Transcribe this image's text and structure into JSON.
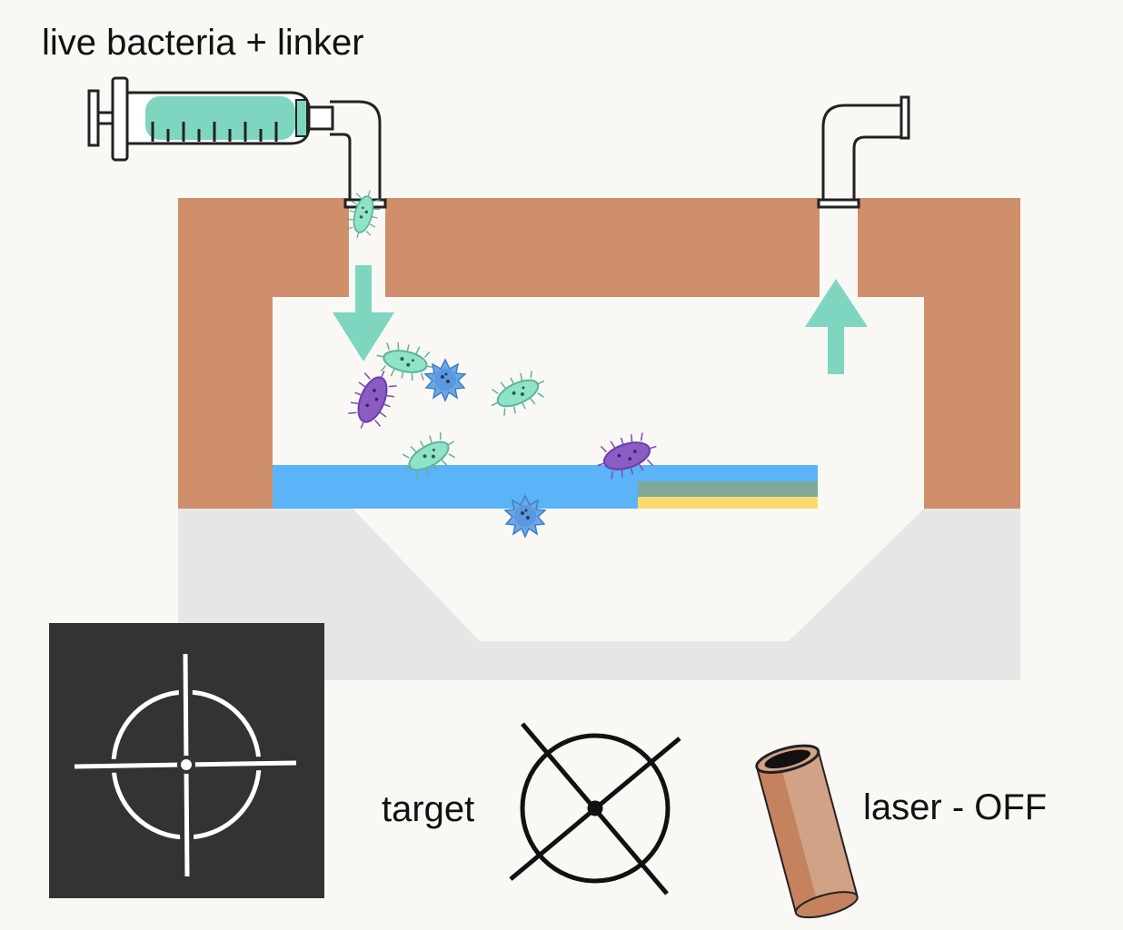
{
  "labels": {
    "inlet": "live bacteria + linker",
    "target": "target",
    "laser": "laser - OFF"
  },
  "colors": {
    "background": "#f9f8f4",
    "chamber_wall": "#cf8f6a",
    "base": "#e6e6e6",
    "fluid_arrow": "#7fd6c0",
    "syringe_fluid": "#7fd6c0",
    "substrate": "#5ab4f7",
    "layer_green": "#7ea898",
    "layer_yellow": "#fcd96e",
    "bacteria_green": "#8fe3c9",
    "bacteria_purple": "#8a5cc4",
    "bacteria_blue": "#6aa7e6",
    "crosshair_panel": "#333333",
    "laser_tube": "#d2a287"
  },
  "icons": {
    "inlet_syringe": "syringe-icon",
    "crosshair": "crosshair-icon",
    "target": "target-icon",
    "laser": "laser-tube-icon",
    "flow_in": "arrow-down-icon",
    "flow_out": "arrow-up-icon"
  }
}
